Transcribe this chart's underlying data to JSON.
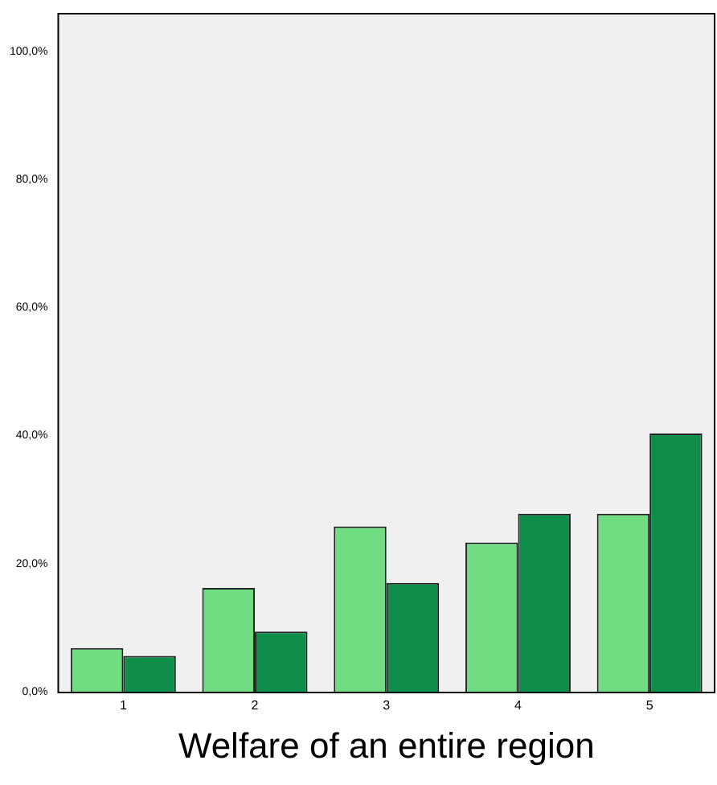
{
  "chart_data": {
    "type": "bar",
    "xlabel": "Welfare of an entire region",
    "categories": [
      "1",
      "2",
      "3",
      "4",
      "5"
    ],
    "series": [
      {
        "color": "#6fdc82",
        "values": [
          6.8,
          16.2,
          25.8,
          23.3,
          27.8
        ]
      },
      {
        "color": "#0e8e4a",
        "values": [
          5.6,
          9.4,
          17.0,
          27.8,
          40.3
        ]
      }
    ],
    "ylim": [
      0,
      106
    ],
    "yticks": [
      {
        "value": 0,
        "label": "0,0%"
      },
      {
        "value": 20,
        "label": "20,0%"
      },
      {
        "value": 40,
        "label": "40,0%"
      },
      {
        "value": 60,
        "label": "60,0%"
      },
      {
        "value": 80,
        "label": "80,0%"
      },
      {
        "value": 100,
        "label": "100,0%"
      }
    ],
    "grid": false,
    "legend": false
  }
}
